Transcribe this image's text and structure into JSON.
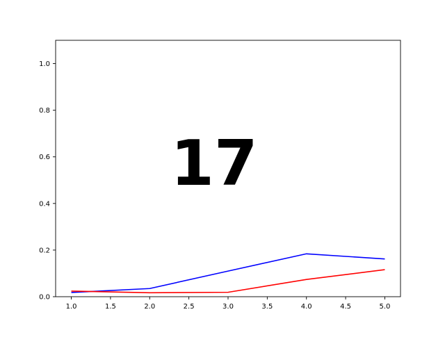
{
  "chart_data": {
    "type": "line",
    "title": "",
    "xlabel": "",
    "ylabel": "",
    "annotation": "17",
    "xlim": [
      0.8,
      5.2
    ],
    "ylim": [
      0.0,
      1.1
    ],
    "x_ticks": [
      1.0,
      1.5,
      2.0,
      2.5,
      3.0,
      3.5,
      4.0,
      4.5,
      5.0
    ],
    "x_tick_labels": [
      "1.0",
      "1.5",
      "2.0",
      "2.5",
      "3.0",
      "3.5",
      "4.0",
      "4.5",
      "5.0"
    ],
    "y_ticks": [
      0.0,
      0.2,
      0.4,
      0.6,
      0.8,
      1.0
    ],
    "y_tick_labels": [
      "0.0",
      "0.2",
      "0.4",
      "0.6",
      "0.8",
      "1.0"
    ],
    "grid": false,
    "x": [
      1,
      2,
      3,
      4,
      5
    ],
    "series": [
      {
        "color": "#0000ff",
        "values": [
          0.018,
          0.035,
          0.11,
          0.184,
          0.162
        ]
      },
      {
        "color": "#ff0000",
        "values": [
          0.024,
          0.017,
          0.019,
          0.074,
          0.116
        ]
      }
    ]
  }
}
